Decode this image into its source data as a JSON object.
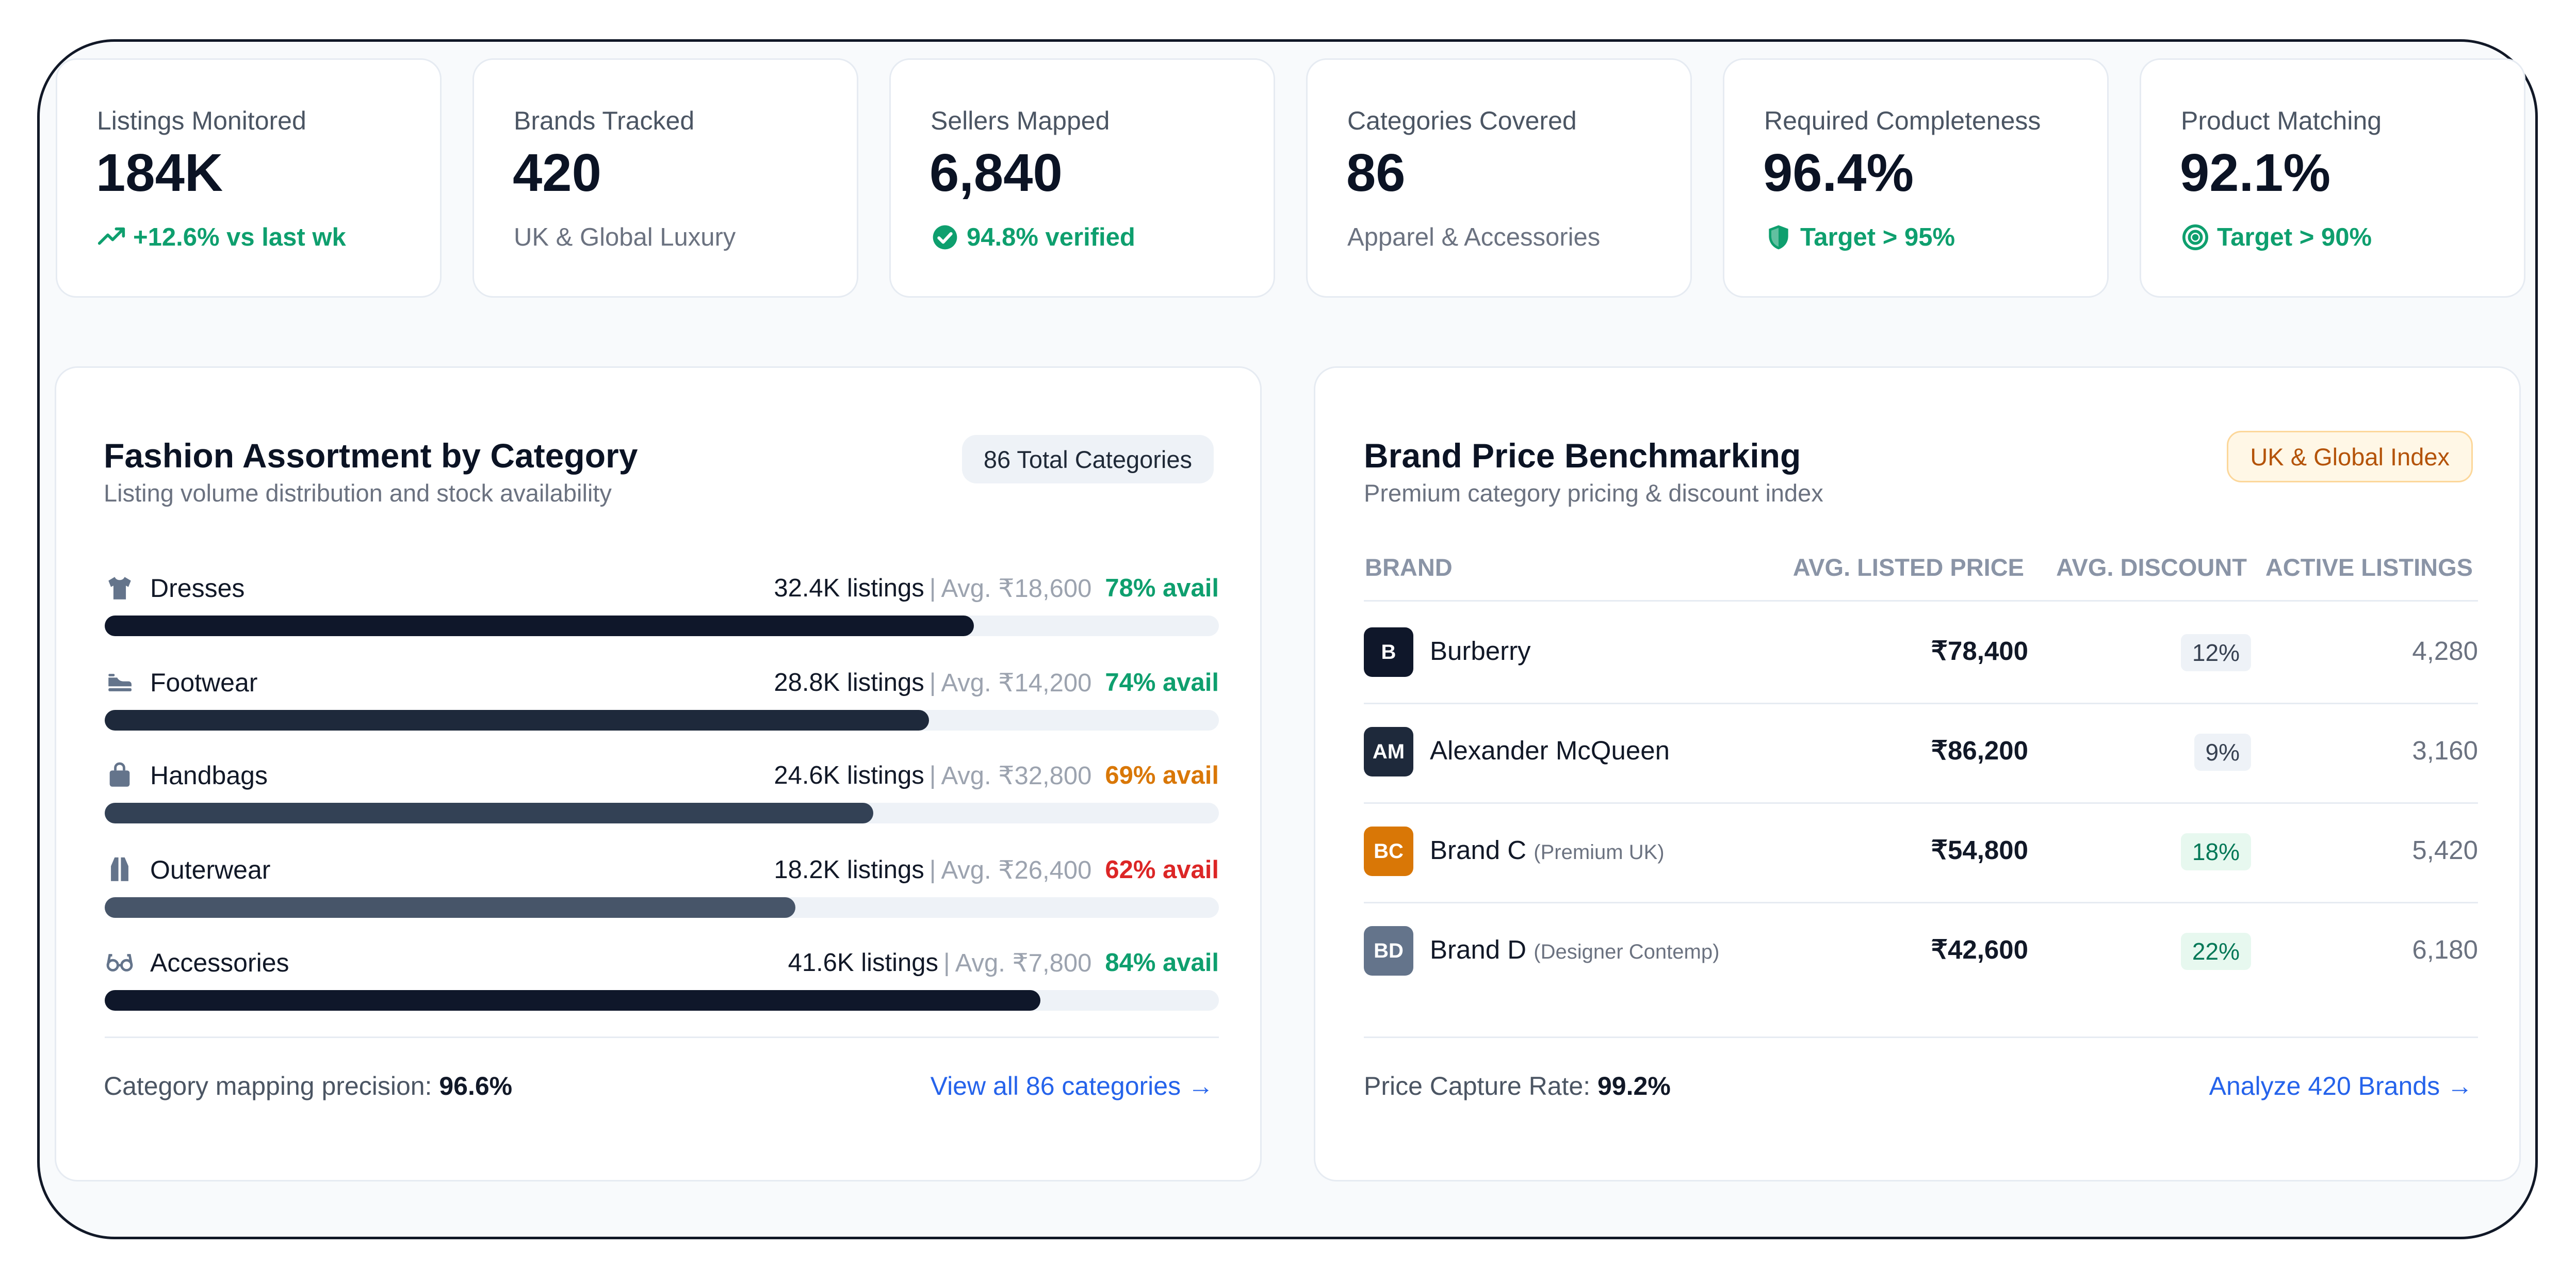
{
  "kpis": [
    {
      "label": "Listings Monitored",
      "value": "184K",
      "sub": "+12.6% vs last wk",
      "sub_icon": "trend-up-icon"
    },
    {
      "label": "Brands Tracked",
      "value": "420",
      "sub": "UK & Global Luxury"
    },
    {
      "label": "Sellers Mapped",
      "value": "6,840",
      "sub": "94.8% verified",
      "sub_icon": "check-circle-icon"
    },
    {
      "label": "Categories Covered",
      "value": "86",
      "sub": "Apparel & Accessories"
    },
    {
      "label": "Required Completeness",
      "value": "96.4%",
      "sub": "Target > 95%",
      "sub_icon": "shield-icon"
    },
    {
      "label": "Product Matching",
      "value": "92.1%",
      "sub": "Target > 90%",
      "sub_icon": "target-icon"
    }
  ],
  "assortment": {
    "title": "Fashion Assortment by Category",
    "subtitle": "Listing volume distribution and stock availability",
    "badge": "86 Total Categories",
    "rows": [
      {
        "name": "Dresses",
        "icon": "shirt-icon",
        "count": "32.4K listings",
        "avg": "Avg. ₹18,600",
        "avail": "78% avail",
        "share": 0.78,
        "bar_color": "#0f172a",
        "avail_color": "#0e9f6e"
      },
      {
        "name": "Footwear",
        "icon": "shoe-icon",
        "count": "28.8K listings",
        "avg": "Avg. ₹14,200",
        "avail": "74% avail",
        "share": 0.74,
        "bar_color": "#1e293b",
        "avail_color": "#0e9f6e"
      },
      {
        "name": "Handbags",
        "icon": "bag-icon",
        "count": "24.6K listings",
        "avg": "Avg. ₹32,800",
        "avail": "69% avail",
        "share": 0.69,
        "bar_color": "#334155",
        "avail_color": "#d97706"
      },
      {
        "name": "Outerwear",
        "icon": "coat-icon",
        "count": "18.2K listings",
        "avg": "Avg. ₹26,400",
        "avail": "62% avail",
        "share": 0.62,
        "bar_color": "#475569",
        "avail_color": "#dc2626"
      },
      {
        "name": "Accessories",
        "icon": "glasses-icon",
        "count": "41.6K listings",
        "avg": "Avg. ₹7,800",
        "avail": "84% avail",
        "share": 0.84,
        "bar_color": "#0f172a",
        "avail_color": "#0e9f6e"
      }
    ],
    "footer_label": "Category mapping precision:",
    "footer_value": "96.6%",
    "footer_link": "View all 86 categories →"
  },
  "benchmark": {
    "title": "Brand Price Benchmarking",
    "subtitle": "Premium category pricing & discount index",
    "badge": "UK & Global Index",
    "columns": [
      "BRAND",
      "AVG. LISTED PRICE",
      "AVG. DISCOUNT",
      "ACTIVE LISTINGS"
    ],
    "rows": [
      {
        "initials": "B",
        "badge_color": "#0f172a",
        "name": "Burberry",
        "note": "",
        "price": "₹78,400",
        "discount": "12%",
        "disc_bg": "#eef2f7",
        "disc_color": "#374151",
        "active": "4,280"
      },
      {
        "initials": "AM",
        "badge_color": "#1e293b",
        "name": "Alexander McQueen",
        "note": "",
        "price": "₹86,200",
        "discount": "9%",
        "disc_bg": "#eef2f7",
        "disc_color": "#374151",
        "active": "3,160"
      },
      {
        "initials": "BC",
        "badge_color": "#d97706",
        "name": "Brand C",
        "note": "(Premium UK)",
        "price": "₹54,800",
        "discount": "18%",
        "disc_bg": "#e7f8ef",
        "disc_color": "#047857",
        "active": "5,420"
      },
      {
        "initials": "BD",
        "badge_color": "#64748b",
        "name": "Brand D",
        "note": "(Designer Contemp)",
        "price": "₹42,600",
        "discount": "22%",
        "disc_bg": "#e7f8ef",
        "disc_color": "#047857",
        "active": "6,180"
      }
    ],
    "footer_label": "Price Capture Rate:",
    "footer_value": "99.2%",
    "footer_link": "Analyze 420 Brands →"
  }
}
